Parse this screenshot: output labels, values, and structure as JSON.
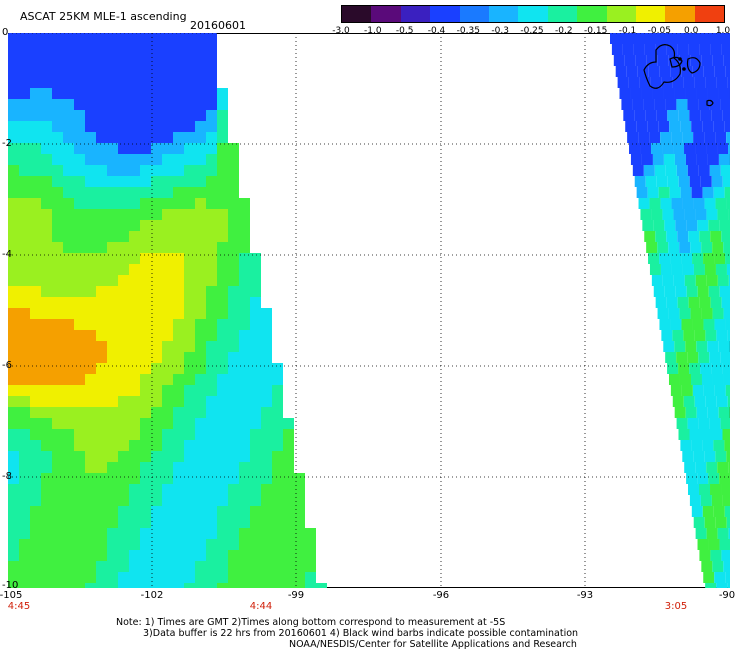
{
  "header": {
    "title": "ASCAT 25KM MLE-1 ascending",
    "date": "20160601"
  },
  "colorbar": {
    "labels": [
      "-3.0",
      "-1.0",
      "-0.5",
      "-0.4",
      "-0.35",
      "-0.3",
      "-0.25",
      "-0.2",
      "-0.15",
      "-0.1",
      "-0.05",
      "0.0",
      "1.0"
    ],
    "colors": [
      "#2a0a2a",
      "#5a0a7a",
      "#3a20c0",
      "#1a40ff",
      "#1a7aff",
      "#19b4ff",
      "#10e4f0",
      "#1af0a0",
      "#40f040",
      "#9af020",
      "#f0f000",
      "#f5a000",
      "#f04010"
    ]
  },
  "axes": {
    "lat_labels": [
      "0",
      "-2",
      "-4",
      "-6",
      "-8",
      "-10"
    ],
    "lon_labels": [
      "-105",
      "-102",
      "-99",
      "-96",
      "-93",
      "-90"
    ],
    "times": [
      "4:45",
      "4:44",
      "3:05"
    ]
  },
  "notes": {
    "line1": "Note: 1) Times are GMT 2)Times along bottom correspond to measurement at -5S",
    "line2": "3)Data buffer is 22 hrs from 20160601 4) Black wind barbs indicate possible contamination",
    "line3": "NOAA/NESDIS/Center for Satellite Applications and Research"
  }
}
